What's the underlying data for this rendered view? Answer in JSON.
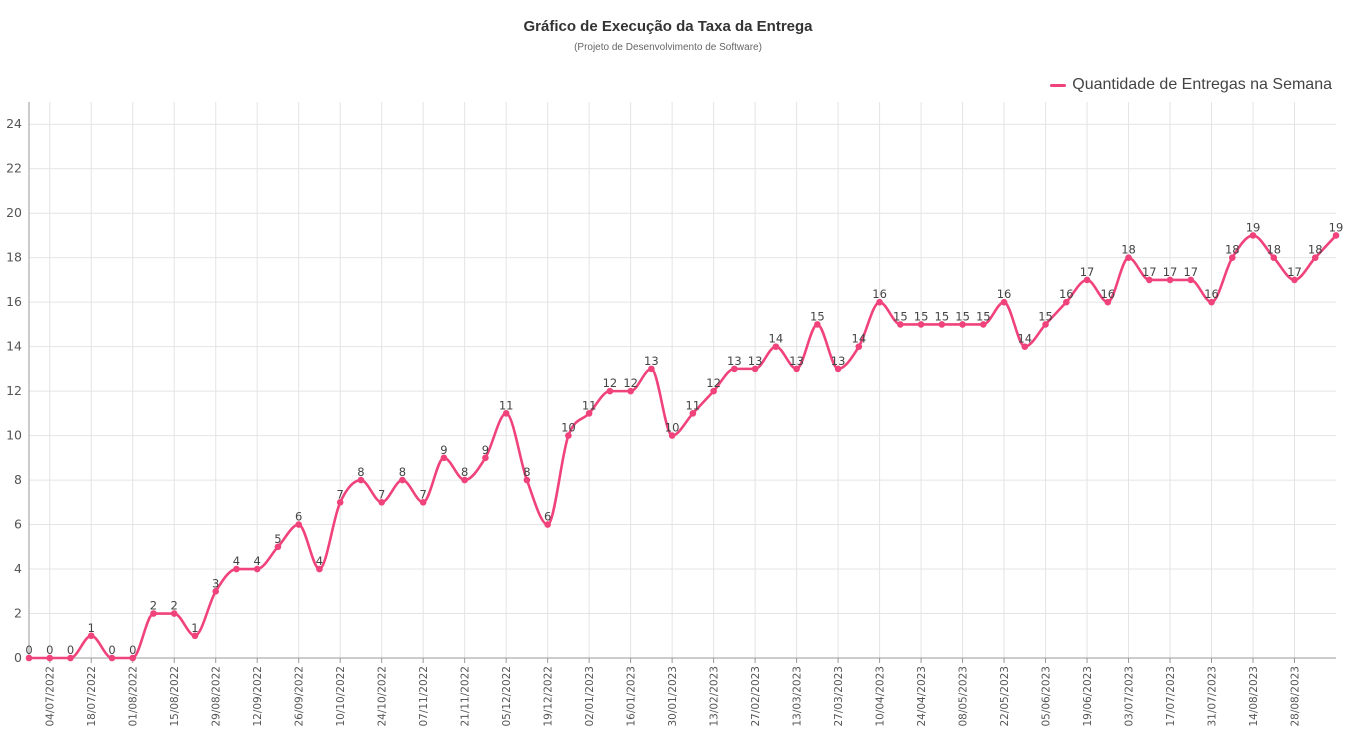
{
  "header": {
    "title": "Gráfico de Execução da Taxa da Entrega",
    "subtitle": "(Projeto de Desenvolvimento de Software)"
  },
  "chart_data": {
    "type": "line",
    "title": "Gráfico de Execução da Taxa da Entrega",
    "subtitle": "(Projeto de Desenvolvimento de Software)",
    "xlabel": "",
    "ylabel": "",
    "ylim": [
      0,
      25
    ],
    "yticks": [
      0,
      2,
      4,
      6,
      8,
      10,
      12,
      14,
      16,
      18,
      20,
      22,
      24
    ],
    "x_tick_labels": [
      "04/07/2022",
      "18/07/2022",
      "01/08/2022",
      "15/08/2022",
      "29/08/2022",
      "12/09/2022",
      "26/09/2022",
      "10/10/2022",
      "24/10/2022",
      "07/11/2022",
      "21/11/2022",
      "05/12/2022",
      "19/12/2022",
      "02/01/2023",
      "16/01/2023",
      "30/01/2023",
      "13/02/2023",
      "27/02/2023",
      "13/03/2023",
      "27/03/2023",
      "10/04/2023",
      "24/04/2023",
      "08/05/2023",
      "22/05/2023",
      "05/06/2023",
      "19/06/2023",
      "03/07/2023",
      "17/07/2023",
      "31/07/2023",
      "14/08/2023",
      "28/08/2023"
    ],
    "grid": true,
    "legend_position": "top-right",
    "series": [
      {
        "name": "Quantidade de Entregas na Semana",
        "color": "#f0437b",
        "values": [
          0,
          0,
          0,
          1,
          0,
          0,
          2,
          2,
          1,
          3,
          4,
          4,
          5,
          6,
          4,
          7,
          8,
          7,
          8,
          7,
          9,
          8,
          9,
          11,
          8,
          6,
          10,
          11,
          12,
          12,
          13,
          10,
          11,
          12,
          13,
          13,
          14,
          13,
          15,
          13,
          14,
          16,
          15,
          15,
          15,
          15,
          15,
          16,
          14,
          15,
          16,
          17,
          16,
          18,
          17,
          17,
          17,
          16,
          18,
          19,
          18,
          17,
          18,
          19
        ]
      }
    ]
  }
}
